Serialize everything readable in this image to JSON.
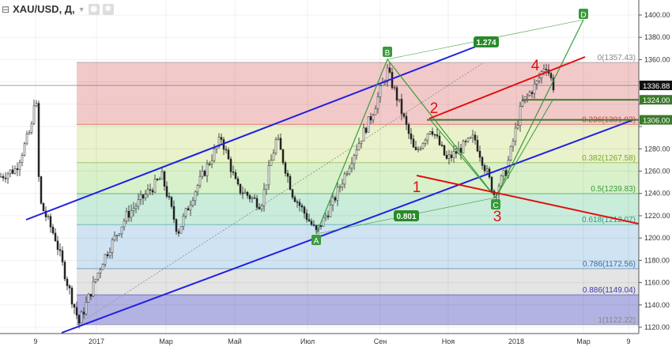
{
  "header": {
    "symbol": "XAU/USD, Д,",
    "collapse_icon": "minus-square-icon",
    "dropdown_icon": "caret-down-icon",
    "eye_icon": "eye-icon",
    "settings_icon": "gear-icon"
  },
  "colors": {
    "channel": "#2020e0",
    "fib_line": "#e04040",
    "wave": "#3a9a3a",
    "elliott": "#e01010"
  },
  "y_axis": {
    "min": 1120,
    "max": 1400,
    "step": 20
  },
  "x_axis": {
    "ticks": [
      "9",
      "2017",
      "Мар",
      "Май",
      "Июл",
      "Сен",
      "Ноя",
      "2018",
      "Мар",
      "9"
    ]
  },
  "price_labels": {
    "current": "1336.88",
    "level1": "1324.00",
    "level2": "1306.00"
  },
  "fib": [
    {
      "label": "0(1357.43)",
      "price": 1357.43,
      "color": "#888888",
      "fill": "#f2c9c9"
    },
    {
      "label": "0.236(1301.92)",
      "price": 1301.92,
      "color": "#d04040",
      "fill": "#e9f2cb"
    },
    {
      "label": "0.382(1267.58)",
      "price": 1267.58,
      "color": "#7aaa2a",
      "fill": "#d9f1cb"
    },
    {
      "label": "0.5(1239.83)",
      "price": 1239.83,
      "color": "#3a9a3a",
      "fill": "#c9ecdb"
    },
    {
      "label": "0.618(1212.07)",
      "price": 1212.07,
      "color": "#2a9a8a",
      "fill": "#cfe3f2"
    },
    {
      "label": "0.786(1172.56)",
      "price": 1172.56,
      "color": "#3a6aaa",
      "fill": "#e4e4e4"
    },
    {
      "label": "0.886(1149.04)",
      "price": 1149.04,
      "color": "#3a3aaa",
      "fill": "#b3b3e3"
    },
    {
      "label": "1(1122.22)",
      "price": 1122.22,
      "color": "#888888",
      "fill": null
    }
  ],
  "waves": {
    "A": "A",
    "B": "B",
    "C": "C",
    "D": "D",
    "ratio1": "1.274",
    "ratio2": "0.801"
  },
  "elliott": {
    "w1": "1",
    "w2": "2",
    "w3": "3",
    "w4": "4"
  },
  "chart_data": {
    "type": "candlestick",
    "title": "XAU/USD, Д,",
    "price_path": [
      [
        0,
        1255
      ],
      [
        20,
        1262
      ],
      [
        40,
        1300
      ],
      [
        45,
        1338
      ],
      [
        50,
        1233
      ],
      [
        70,
        1200
      ],
      [
        85,
        1160
      ],
      [
        100,
        1124
      ],
      [
        130,
        1180
      ],
      [
        160,
        1220
      ],
      [
        205,
        1255
      ],
      [
        225,
        1205
      ],
      [
        245,
        1240
      ],
      [
        280,
        1290
      ],
      [
        300,
        1245
      ],
      [
        330,
        1230
      ],
      [
        350,
        1290
      ],
      [
        370,
        1240
      ],
      [
        400,
        1205
      ],
      [
        420,
        1230
      ],
      [
        450,
        1280
      ],
      [
        470,
        1310
      ],
      [
        490,
        1350
      ],
      [
        505,
        1320
      ],
      [
        525,
        1275
      ],
      [
        545,
        1300
      ],
      [
        565,
        1270
      ],
      [
        600,
        1290
      ],
      [
        625,
        1240
      ],
      [
        640,
        1260
      ],
      [
        660,
        1320
      ],
      [
        680,
        1340
      ],
      [
        690,
        1357
      ],
      [
        700,
        1336
      ]
    ]
  }
}
